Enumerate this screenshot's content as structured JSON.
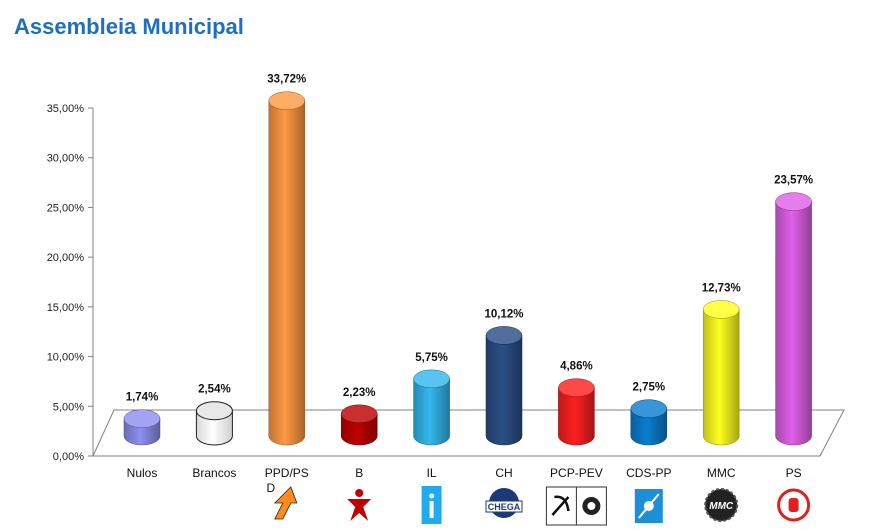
{
  "chart_data": {
    "type": "bar",
    "title": "Assembleia Municipal",
    "categories": [
      "Nulos",
      "Brancos",
      "PPD/PSD",
      "B",
      "IL",
      "CH",
      "PCP-PEV",
      "CDS-PP",
      "MMC",
      "PS"
    ],
    "category_labels": [
      "Nulos",
      "Brancos",
      "PPD/PS D",
      "B",
      "IL",
      "CH",
      "PCP-PEV",
      "CDS-PP",
      "MMC",
      "PS"
    ],
    "values": [
      1.74,
      2.54,
      33.72,
      2.23,
      5.75,
      10.12,
      4.86,
      2.75,
      12.73,
      23.57
    ],
    "data_labels": [
      "1,74%",
      "2,54%",
      "33,72%",
      "2,23%",
      "5,75%",
      "10,12%",
      "4,86%",
      "2,75%",
      "12,73%",
      "23,57%"
    ],
    "colors": [
      "#8f8ff0",
      "#ffffff",
      "#ff9a42",
      "#c00000",
      "#33b8ee",
      "#2a4f86",
      "#ff2020",
      "#0a7fd0",
      "#ffff20",
      "#e060e8"
    ],
    "y_ticks": [
      "0,00%",
      "5,00%",
      "10,00%",
      "15,00%",
      "20,00%",
      "25,00%",
      "30,00%",
      "35,00%"
    ],
    "ylim": [
      0,
      35
    ],
    "xlabel": "",
    "ylabel": "",
    "grid": false,
    "legend": "none",
    "logo_icons": [
      "ppd-psd-logo-icon",
      "bloco-logo-icon",
      "il-logo-icon",
      "chega-logo-icon",
      "pcp-pev-logo-icon",
      "cds-pp-logo-icon",
      "mmc-logo-icon",
      "ps-logo-icon"
    ],
    "logo_texts": {
      "CH": "CHEGA",
      "MMC": "MMC"
    }
  }
}
